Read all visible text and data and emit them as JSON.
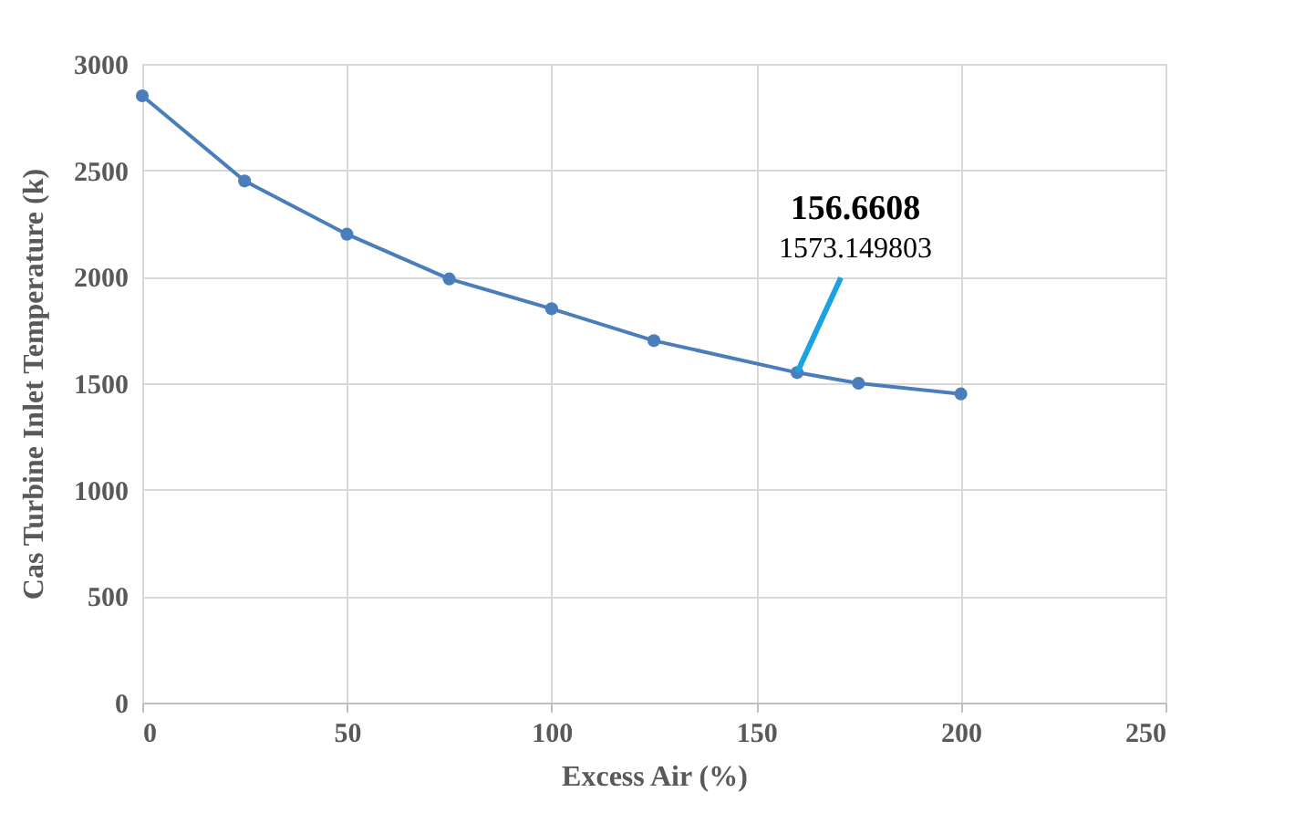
{
  "chart_data": {
    "type": "line",
    "xlabel": "Excess Air (%)",
    "ylabel": "Cas Turbine  Inlet Temperature  (k)",
    "x": [
      0,
      25,
      50,
      75,
      100,
      125,
      160,
      175,
      200
    ],
    "series": [
      {
        "color": "#4a7ebb",
        "values": [
          2850,
          2450,
          2200,
          1990,
          1850,
          1700,
          1550,
          1500,
          1450
        ]
      }
    ],
    "xlim": [
      0,
      250
    ],
    "xticks": [
      0,
      50,
      100,
      150,
      200,
      250
    ],
    "ylim": [
      0,
      3000
    ],
    "yticks": [
      0,
      500,
      1000,
      1500,
      2000,
      2500,
      3000
    ],
    "grid": true,
    "marker": "circle",
    "annotations": [
      "156.6608",
      {
        "text": "1573.149803",
        "x": 160,
        "y": 1550
      }
    ]
  }
}
